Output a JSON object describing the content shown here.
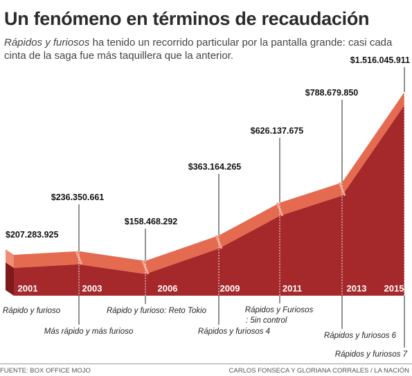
{
  "header": {
    "title": "Un fenómeno en términos de recaudación",
    "subtitle_em": "Rápidos y furiosos",
    "subtitle_rest": " ha tenido un recorrido particular por la pantalla grande: casi cada cinta de la saga fue más taquillera que la anterior."
  },
  "footer": {
    "source": "FUENTE: BOX OFFICE MOJO",
    "credit": "CARLOS FONSECA Y GLORIANA CORRALES  / LA NACIÓN"
  },
  "colors": {
    "top_band": "#e46a50",
    "bottom_fill": "#a5282b",
    "side_light": "#f08d76",
    "side_dark": "#7e1a1c",
    "year_text": "#ffffff",
    "value_text": "#111111"
  },
  "chart_data": {
    "type": "area",
    "title": "Un fenómeno en términos de recaudación",
    "xlabel": "",
    "ylabel": "",
    "ylim": [
      0,
      1600000000
    ],
    "grid": false,
    "legend": "none",
    "categories": [
      "2001",
      "2003",
      "2006",
      "2009",
      "2011",
      "2013",
      "2015"
    ],
    "series": [
      {
        "values": [
          207283925,
          236350661,
          158468292,
          363164265,
          626137675,
          788679850,
          1516045911
        ]
      }
    ],
    "value_labels": [
      "$207.283.925",
      "$236.350.661",
      "$158.468.292",
      "$363.164.265",
      "$626.137.675",
      "$788.679.850",
      "$1.516.045.911"
    ],
    "movies": [
      "Rápido y furioso",
      "Más rápido y más furioso",
      "Rápido y furioso: Reto Tokio",
      "Rápidos y furiosos 4",
      "Rápidos y Furiosos : 5in control",
      "Rápidos y furiosos 6",
      "Rápidos y furiosos 7"
    ]
  }
}
